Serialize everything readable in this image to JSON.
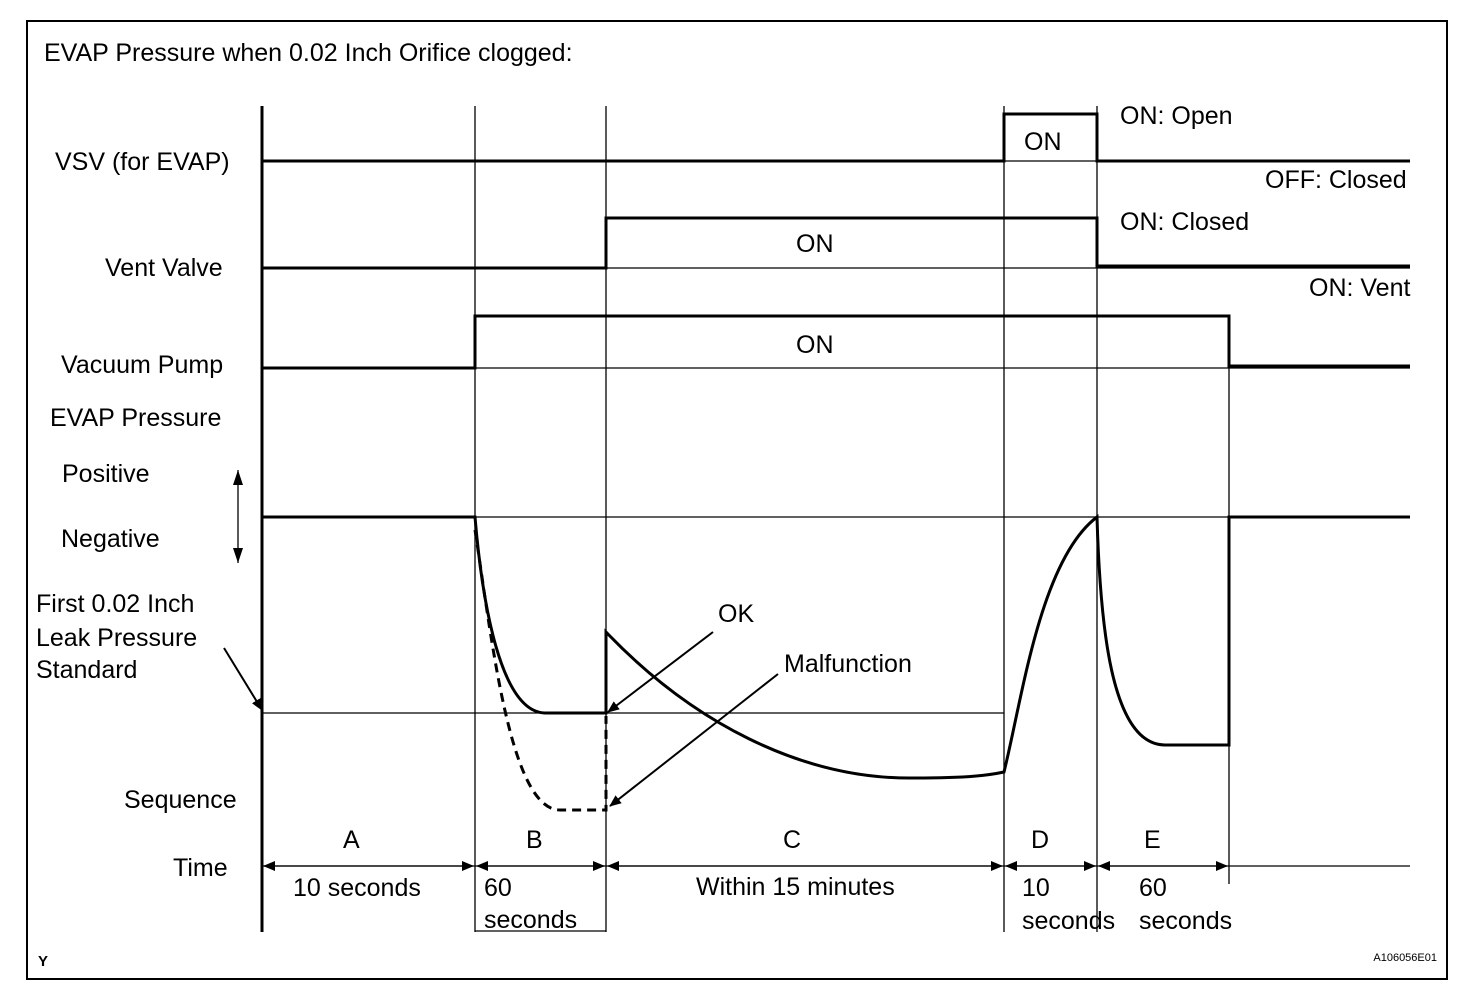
{
  "title": "EVAP Pressure when 0.02 Inch Orifice clogged:",
  "row_labels": {
    "vsv": "VSV (for EVAP)",
    "vent_valve": "Vent Valve",
    "vacuum_pump": "Vacuum Pump",
    "evap_pressure": "EVAP Pressure",
    "positive": "Positive",
    "negative": "Negative",
    "standard_line1": "First 0.02 Inch",
    "standard_line2": "Leak Pressure",
    "standard_line3": "Standard",
    "sequence": "Sequence",
    "time": "Time"
  },
  "state_labels": {
    "vsv_on": "ON",
    "vsv_on_desc": "ON: Open",
    "vsv_off_desc": "OFF: Closed",
    "vent_on": "ON",
    "vent_on_desc": "ON: Closed",
    "vent_off_desc": "ON: Vent",
    "pump_on": "ON"
  },
  "annotations": {
    "ok": "OK",
    "malfunction": "Malfunction"
  },
  "sequence": {
    "a": "A",
    "b": "B",
    "c": "C",
    "d": "D",
    "e": "E"
  },
  "durations": {
    "a": "10 seconds",
    "b_line1": "60",
    "b_line2": "seconds",
    "c": "Within 15 minutes",
    "d_line1": "10",
    "d_line2": "seconds",
    "e_line1": "60",
    "e_line2": "seconds"
  },
  "corner_left": "Y",
  "corner_right": "A106056E01"
}
